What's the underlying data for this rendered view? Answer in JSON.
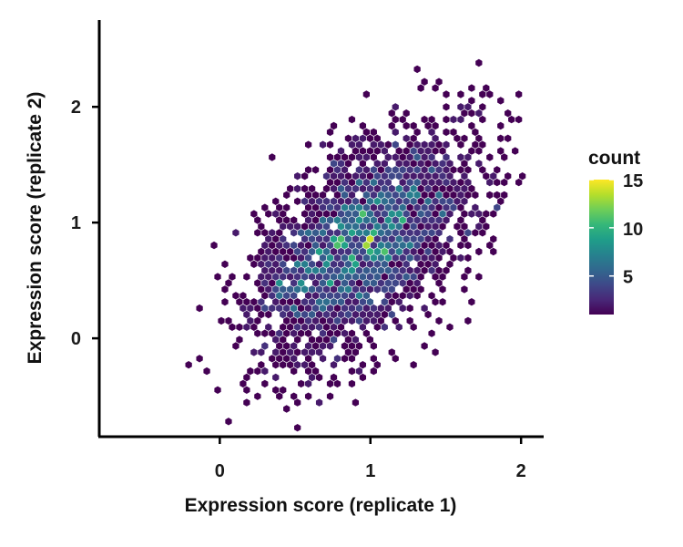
{
  "chart_data": {
    "type": "heatmap",
    "subtype": "hexbin",
    "title": "",
    "xlabel": "Expression score (replicate 1)",
    "ylabel": "Expression score (replicate 2)",
    "xlim": [
      -0.8,
      2.15
    ],
    "ylim": [
      -0.85,
      2.75
    ],
    "x_ticks": [
      0,
      1,
      2
    ],
    "x_tick_labels": [
      "0",
      "1",
      "2"
    ],
    "y_ticks": [
      0,
      1,
      2
    ],
    "y_tick_labels": [
      "0",
      "1",
      "2"
    ],
    "grid": false,
    "hex_radius_data": 0.024,
    "distribution": {
      "description_free": true,
      "center": [
        0.95,
        0.82
      ],
      "sd": [
        0.38,
        0.5
      ],
      "correlation": 0.55,
      "n_points": 2400,
      "seed": 7
    },
    "colorbar": {
      "title": "count",
      "min": 1,
      "max": 15,
      "ticks": [
        5,
        10,
        15
      ],
      "tick_labels": [
        "5",
        "10",
        "15"
      ],
      "colormap": "viridis",
      "placement": "right"
    },
    "colors": {
      "viridis_stops": [
        "#440154",
        "#482878",
        "#3e4989",
        "#31688e",
        "#26828e",
        "#1f9e89",
        "#35b779",
        "#6ece58",
        "#b5de2b",
        "#fde725"
      ],
      "axis": "#000000"
    }
  }
}
